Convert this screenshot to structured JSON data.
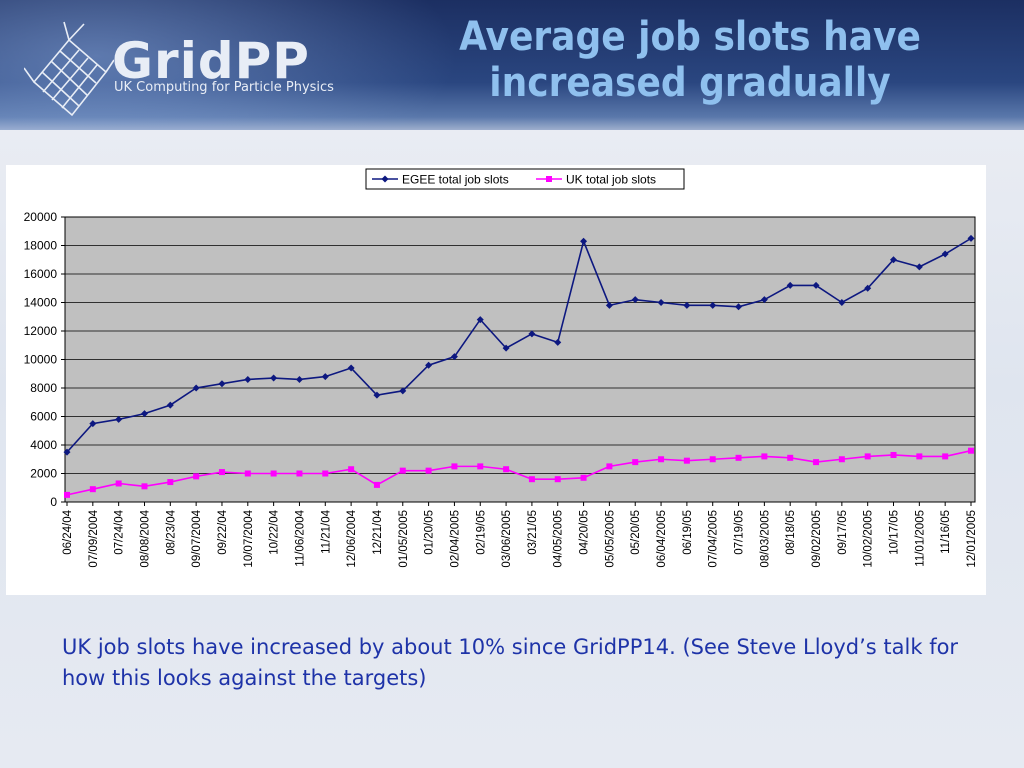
{
  "slide": {
    "title": "Average job slots have increased gradually",
    "logo_name": "GridPP",
    "logo_tagline": "UK Computing for Particle Physics",
    "caption": "UK job slots have increased by about 10% since GridPP14. (See Steve Lloyd’s talk for how this looks against the targets)"
  },
  "colors": {
    "egee": "#0d1880",
    "uk": "#ff00ff",
    "plot_bg": "#c0c0c0",
    "title": "#8fc0ee",
    "caption": "#1e33a8"
  },
  "chart_data": {
    "type": "line",
    "title": "",
    "xlabel": "",
    "ylabel": "",
    "ylim": [
      0,
      20000
    ],
    "yticks": [
      0,
      2000,
      4000,
      6000,
      8000,
      10000,
      12000,
      14000,
      16000,
      18000,
      20000
    ],
    "grid": true,
    "legend_position": "top-center",
    "x_tick_labels": [
      "06/24/04",
      "07/09/2004",
      "07/24/04",
      "08/08/2004",
      "08/23/04",
      "09/07/2004",
      "09/22/04",
      "10/07/2004",
      "10/22/04",
      "11/06/2004",
      "11/21/04",
      "12/06/2004",
      "12/21/04",
      "01/05/2005",
      "01/20/05",
      "02/04/2005",
      "02/19/05",
      "03/06/2005",
      "03/21/05",
      "04/05/2005",
      "04/20/05",
      "05/05/2005",
      "05/20/05",
      "06/04/2005",
      "06/19/05",
      "07/04/2005",
      "07/19/05",
      "08/03/2005",
      "08/18/05",
      "09/02/2005",
      "09/17/05",
      "10/02/2005",
      "10/17/05",
      "11/01/2005",
      "11/16/05",
      "12/01/2005"
    ],
    "x": [
      "06/24/04",
      "07/09/2004",
      "07/24/04",
      "08/08/2004",
      "08/23/04",
      "09/07/2004",
      "09/22/04",
      "10/07/2004",
      "10/22/04",
      "11/06/2004",
      "11/21/04",
      "12/06/2004",
      "12/21/04",
      "01/05/2005",
      "01/20/05",
      "02/04/2005",
      "02/19/05",
      "03/06/2005",
      "03/21/05",
      "04/05/2005",
      "04/20/05",
      "05/05/2005",
      "05/20/05",
      "06/04/2005",
      "06/19/05",
      "07/04/2005",
      "07/19/05",
      "08/03/2005",
      "08/18/05",
      "09/02/2005",
      "09/17/05",
      "10/02/2005",
      "10/17/05",
      "11/01/2005",
      "11/16/05",
      "12/01/2005"
    ],
    "series": [
      {
        "name": "EGEE total job slots",
        "marker": "diamond",
        "values": [
          3500,
          5500,
          5800,
          6200,
          6800,
          8000,
          8300,
          8600,
          8700,
          8600,
          8800,
          9400,
          7500,
          7800,
          9600,
          10200,
          12800,
          10800,
          11800,
          11200,
          18300,
          13800,
          14200,
          14000,
          13800,
          13800,
          13700,
          14200,
          15200,
          15200,
          14000,
          15000,
          17000,
          16500,
          17400,
          18500
        ]
      },
      {
        "name": "UK total job slots",
        "marker": "square",
        "values": [
          500,
          900,
          1300,
          1100,
          1400,
          1800,
          2100,
          2000,
          2000,
          2000,
          2000,
          2300,
          1200,
          2200,
          2200,
          2500,
          2500,
          2300,
          1600,
          1600,
          1700,
          2500,
          2800,
          3000,
          2900,
          3000,
          3100,
          3200,
          3100,
          2800,
          3000,
          3200,
          3300,
          3200,
          3200,
          3600
        ]
      }
    ]
  }
}
